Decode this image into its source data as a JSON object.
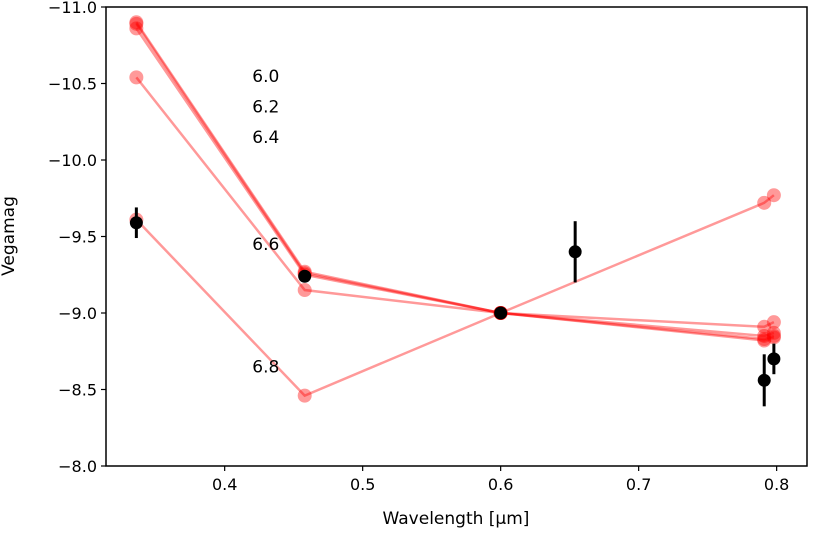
{
  "chart_data": {
    "type": "scatter",
    "title": "",
    "xlabel": "Wavelength [μm]",
    "ylabel": "Vegamag",
    "xlim": [
      0.314,
      0.822
    ],
    "ylim": [
      -8.0,
      -11.0
    ],
    "y_inverted": true,
    "grid": false,
    "xticks": [
      0.4,
      0.5,
      0.6,
      0.7,
      0.8
    ],
    "xtick_labels": [
      "0.4",
      "0.5",
      "0.6",
      "0.7",
      "0.8"
    ],
    "yticks": [
      -11.0,
      -10.5,
      -10.0,
      -9.5,
      -9.0,
      -8.5,
      -8.0
    ],
    "ytick_labels": [
      "−11.0",
      "−10.5",
      "−10.0",
      "−9.5",
      "−9.0",
      "−8.5",
      "−8.0"
    ],
    "model_color": "#ff0000",
    "obs_color": "#000000",
    "models": [
      {
        "name": "6.0",
        "x": [
          0.336,
          0.458,
          0.6,
          0.791,
          0.798
        ],
        "y": [
          -10.9,
          -9.27,
          -9.0,
          -8.82,
          -8.84
        ]
      },
      {
        "name": "6.2",
        "x": [
          0.336,
          0.458,
          0.6,
          0.791,
          0.798
        ],
        "y": [
          -10.89,
          -9.26,
          -9.0,
          -8.83,
          -8.85
        ]
      },
      {
        "name": "6.4",
        "x": [
          0.336,
          0.458,
          0.6,
          0.791,
          0.798
        ],
        "y": [
          -10.86,
          -9.25,
          -9.0,
          -8.85,
          -8.87
        ]
      },
      {
        "name": "6.6",
        "x": [
          0.336,
          0.458,
          0.6,
          0.791,
          0.798
        ],
        "y": [
          -10.54,
          -9.15,
          -9.0,
          -8.91,
          -8.94
        ]
      },
      {
        "name": "6.8",
        "x": [
          0.336,
          0.458,
          0.6,
          0.791,
          0.798
        ],
        "y": [
          -9.61,
          -8.46,
          -9.0,
          -9.72,
          -9.77
        ]
      }
    ],
    "observations": {
      "x": [
        0.336,
        0.458,
        0.6,
        0.654,
        0.791,
        0.798
      ],
      "y": [
        -9.59,
        -9.24,
        -9.0,
        -9.4,
        -8.56,
        -8.7
      ],
      "yerr": [
        0.1,
        0.0,
        0.0,
        0.2,
        0.17,
        0.1
      ]
    },
    "annotations": [
      {
        "text": "6.0",
        "x": 0.42,
        "y": -10.55
      },
      {
        "text": "6.2",
        "x": 0.42,
        "y": -10.35
      },
      {
        "text": "6.4",
        "x": 0.42,
        "y": -10.15
      },
      {
        "text": "6.6",
        "x": 0.42,
        "y": -9.45
      },
      {
        "text": "6.8",
        "x": 0.42,
        "y": -8.65
      }
    ]
  }
}
